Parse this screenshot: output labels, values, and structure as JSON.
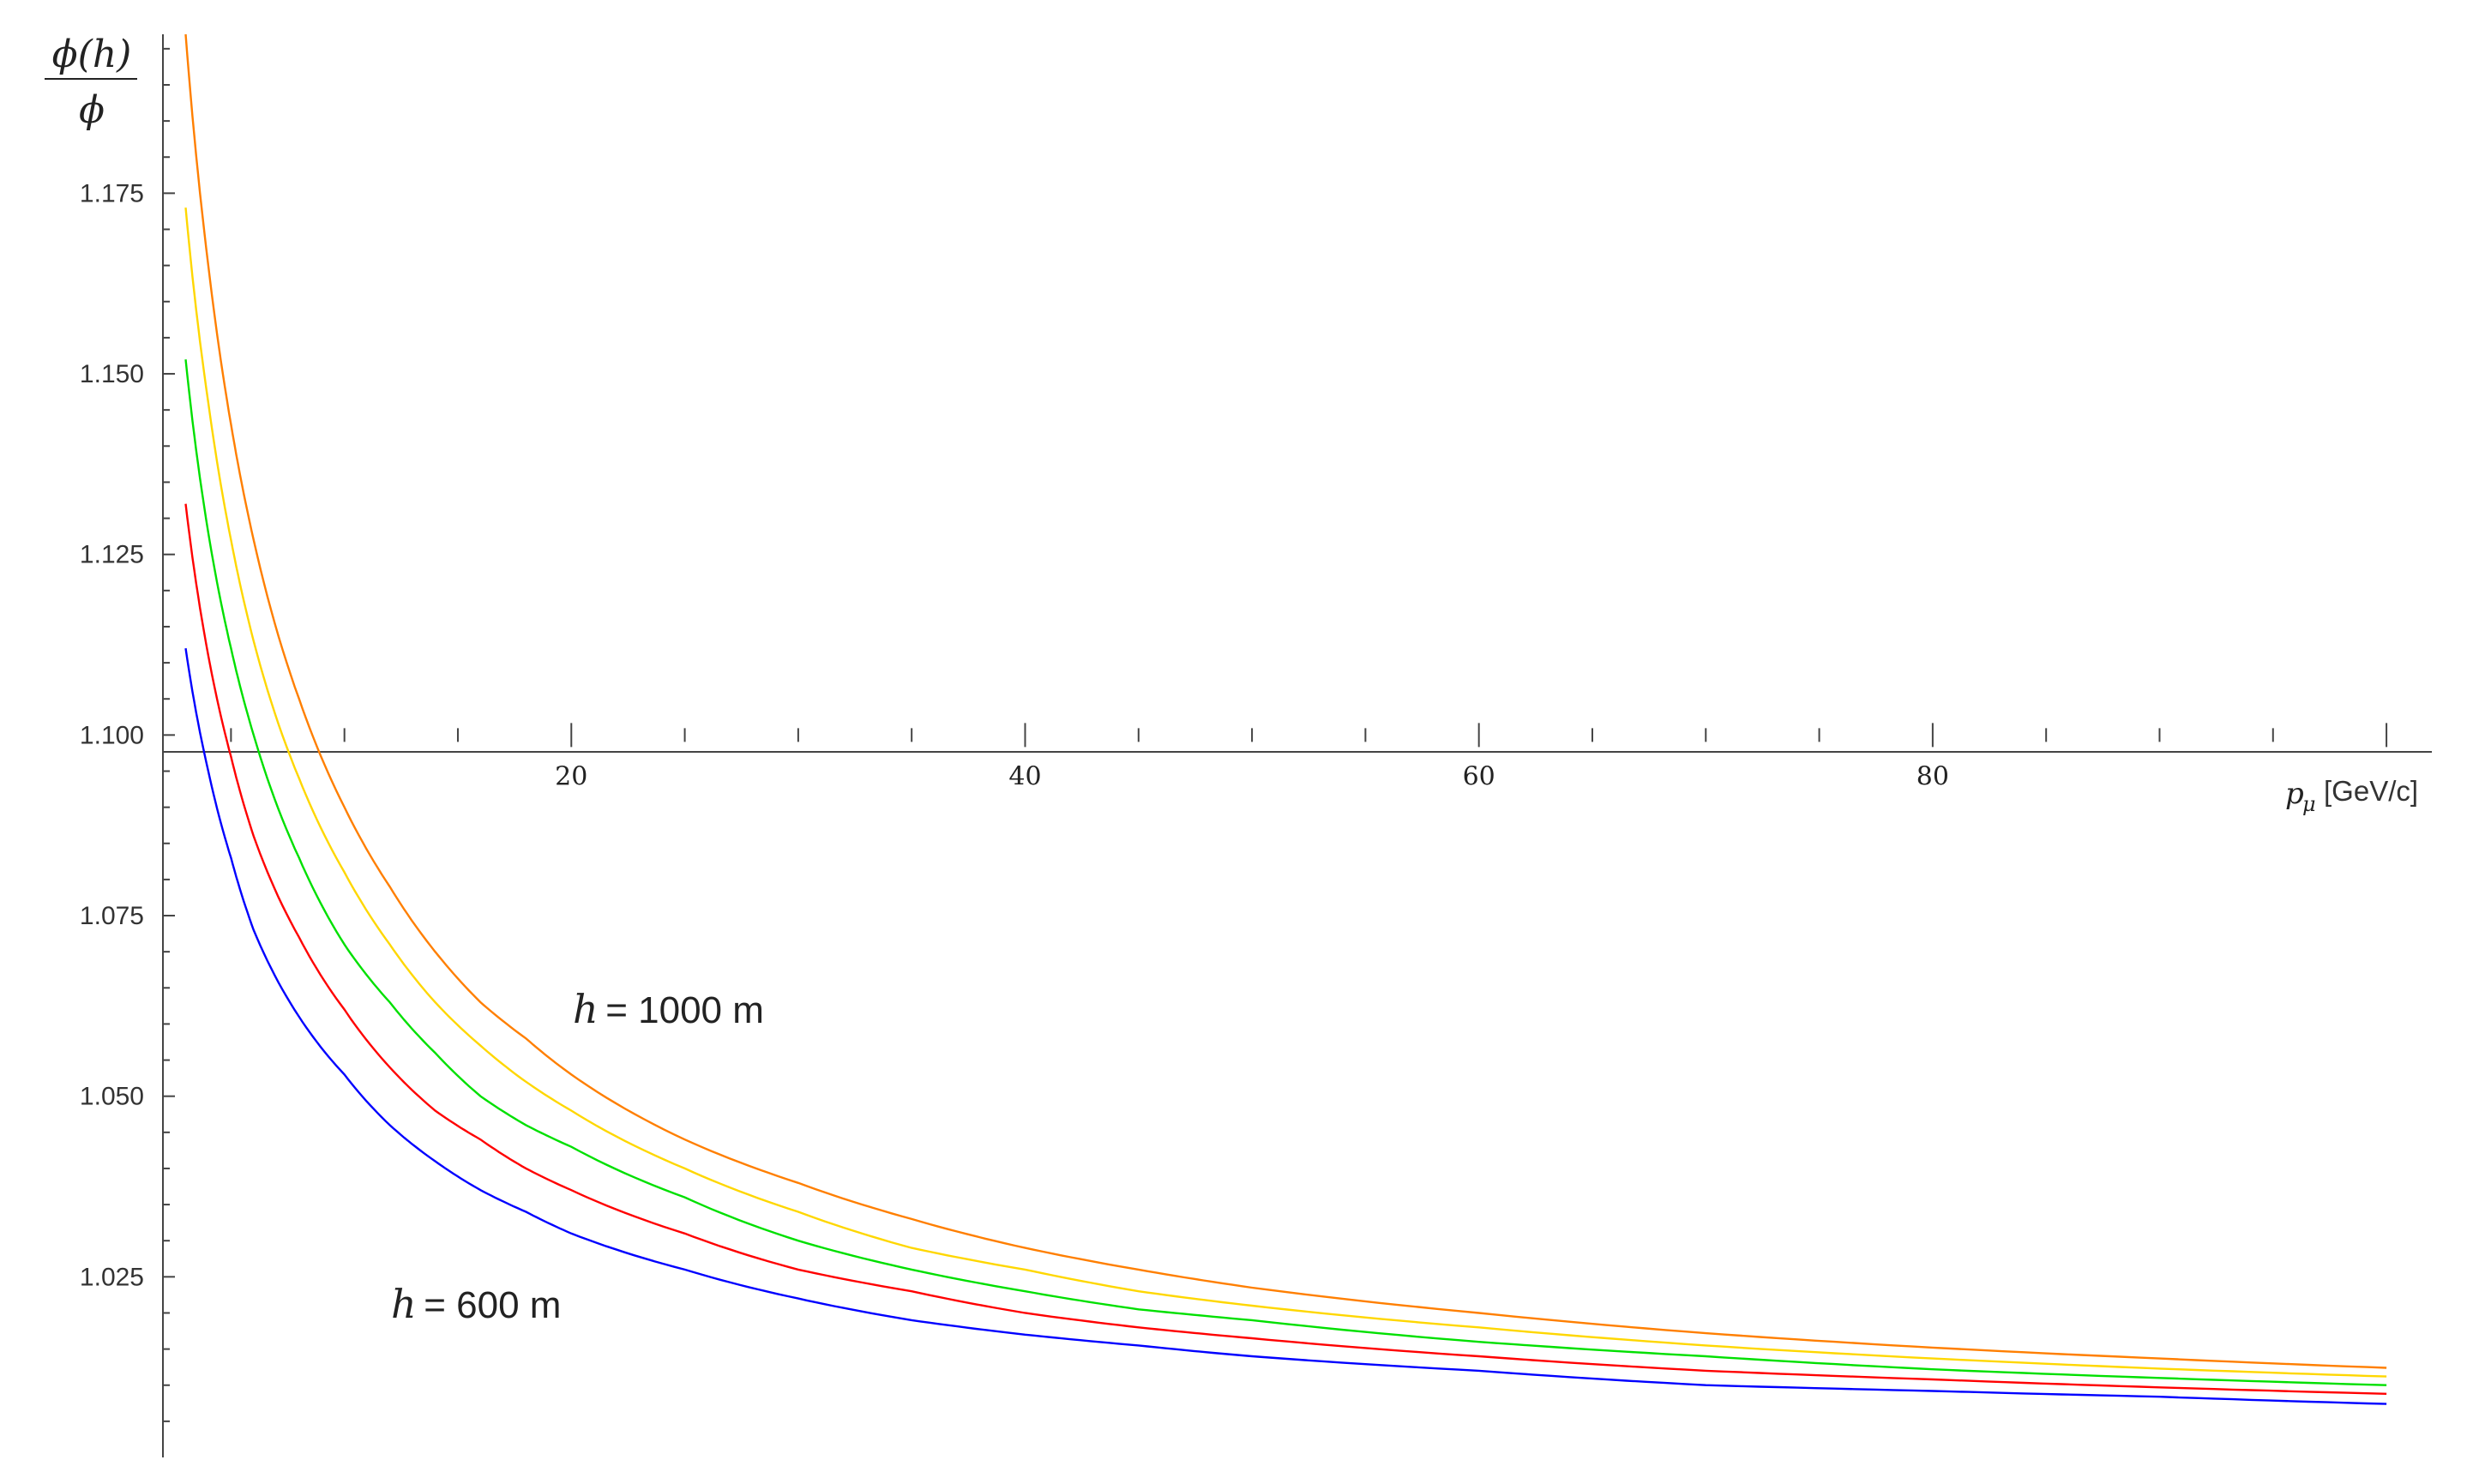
{
  "chart_data": {
    "type": "line",
    "y_label": {
      "numerator": "ϕ(h)",
      "denominator": "ϕ"
    },
    "x_label": {
      "symbol": "p",
      "subscript": "μ",
      "unit": "[GeV/c]"
    },
    "xlim": [
      2,
      102
    ],
    "ylim": [
      1.0,
      1.197
    ],
    "x_axis_crossing_y": 1.1,
    "x_major_ticks": [
      20,
      40,
      60,
      80
    ],
    "x_tick_labels": [
      "20",
      "40",
      "60",
      "80"
    ],
    "y_major_ticks": [
      1.025,
      1.05,
      1.075,
      1.1,
      1.125,
      1.15,
      1.175
    ],
    "y_tick_labels": [
      "1.025",
      "1.050",
      "1.075",
      "1.100",
      "1.125",
      "1.150",
      "1.175"
    ],
    "grid": false,
    "annotations": [
      {
        "id": "top",
        "prefix": "h",
        "text": " = 1000 m"
      },
      {
        "id": "bottom",
        "prefix": "h",
        "text": " = 600 m"
      }
    ],
    "series": [
      {
        "color": "#0000ff",
        "x": [
          3,
          4,
          5,
          6,
          8,
          10,
          12,
          14,
          16,
          18,
          20,
          25,
          30,
          35,
          40,
          45,
          50,
          60,
          70,
          80,
          90,
          100
        ],
        "y": [
          1.112,
          1.095,
          1.083,
          1.073,
          1.061,
          1.053,
          1.046,
          1.041,
          1.037,
          1.034,
          1.031,
          1.026,
          1.022,
          1.019,
          1.017,
          1.0155,
          1.014,
          1.012,
          1.01,
          1.0092,
          1.0084,
          1.0074
        ]
      },
      {
        "color": "#ff0000",
        "x": [
          3,
          4,
          5,
          6,
          8,
          10,
          12,
          14,
          16,
          18,
          20,
          25,
          30,
          35,
          40,
          45,
          50,
          60,
          70,
          80,
          90,
          100
        ],
        "y": [
          1.132,
          1.111,
          1.097,
          1.086,
          1.072,
          1.062,
          1.054,
          1.048,
          1.044,
          1.04,
          1.037,
          1.031,
          1.026,
          1.023,
          1.02,
          1.018,
          1.0165,
          1.014,
          1.012,
          1.0108,
          1.0097,
          1.0088
        ]
      },
      {
        "color": "#00e000",
        "x": [
          3,
          4,
          5,
          6,
          8,
          10,
          12,
          14,
          16,
          18,
          20,
          25,
          30,
          35,
          40,
          45,
          50,
          60,
          70,
          80,
          90,
          100
        ],
        "y": [
          1.152,
          1.128,
          1.112,
          1.1,
          1.083,
          1.071,
          1.063,
          1.056,
          1.05,
          1.046,
          1.043,
          1.036,
          1.03,
          1.026,
          1.023,
          1.0205,
          1.019,
          1.016,
          1.014,
          1.0122,
          1.011,
          1.01
        ]
      },
      {
        "color": "#ffd700",
        "x": [
          3,
          4,
          5,
          6,
          8,
          10,
          12,
          14,
          16,
          18,
          20,
          25,
          30,
          35,
          40,
          45,
          50,
          60,
          70,
          80,
          90,
          100
        ],
        "y": [
          1.173,
          1.146,
          1.127,
          1.113,
          1.094,
          1.081,
          1.071,
          1.063,
          1.057,
          1.052,
          1.048,
          1.04,
          1.034,
          1.029,
          1.026,
          1.023,
          1.021,
          1.018,
          1.0155,
          1.0137,
          1.0123,
          1.0112
        ]
      },
      {
        "color": "#ff7f00",
        "x": [
          3,
          4,
          5,
          6,
          8,
          10,
          12,
          14,
          16,
          18,
          20,
          25,
          30,
          35,
          40,
          45,
          50,
          60,
          70,
          80,
          90,
          100
        ],
        "y": [
          1.197,
          1.165,
          1.143,
          1.127,
          1.105,
          1.09,
          1.079,
          1.07,
          1.063,
          1.058,
          1.053,
          1.044,
          1.038,
          1.033,
          1.029,
          1.026,
          1.0235,
          1.02,
          1.0172,
          1.0152,
          1.0137,
          1.0124
        ]
      }
    ]
  }
}
